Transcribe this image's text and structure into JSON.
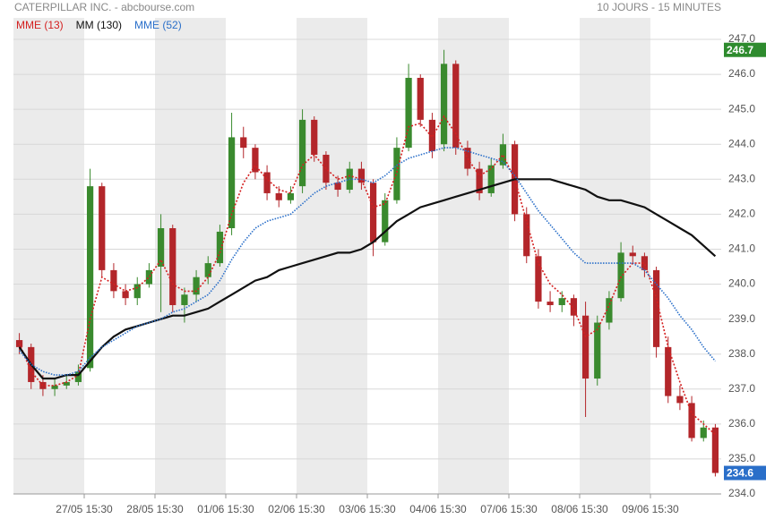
{
  "chart_data": {
    "type": "candlestick",
    "title": "CATERPILLAR INC. - abcbourse.com",
    "subtitle": "10 JOURS - 15 MINUTES",
    "up_color": "#3a8a2e",
    "down_color": "#b3262a",
    "candles": {
      "open": [
        238.4,
        238.2,
        237.2,
        237.0,
        237.1,
        237.2,
        237.6,
        242.8,
        240.4,
        239.8,
        239.6,
        240.0,
        240.5,
        241.6,
        239.4,
        239.7,
        240.2,
        240.6,
        241.6,
        244.2,
        243.9,
        243.2,
        242.6,
        242.4,
        242.8,
        244.7,
        243.7,
        242.9,
        242.7,
        243.3,
        242.9,
        241.2,
        242.4,
        243.9,
        245.9,
        244.7,
        244.0,
        246.3,
        243.9,
        243.3,
        242.6,
        243.4,
        244.0,
        242.0,
        240.8,
        239.5,
        239.4,
        239.6,
        239.1,
        237.3,
        238.9,
        239.6,
        240.9,
        240.8,
        240.4,
        238.2,
        236.8,
        236.6,
        235.6,
        235.9
      ],
      "high": [
        238.6,
        238.3,
        237.4,
        237.3,
        237.4,
        237.7,
        243.3,
        242.9,
        240.6,
        240.0,
        240.2,
        240.6,
        242.0,
        241.7,
        239.9,
        240.4,
        240.8,
        241.7,
        244.9,
        244.5,
        244.0,
        243.4,
        242.8,
        242.8,
        245.0,
        244.8,
        243.8,
        243.1,
        243.5,
        243.5,
        243.0,
        242.6,
        244.2,
        246.3,
        246.0,
        244.9,
        246.7,
        246.4,
        244.1,
        243.5,
        243.6,
        244.3,
        244.1,
        242.2,
        241.0,
        239.8,
        239.8,
        239.7,
        239.5,
        239.1,
        239.8,
        241.2,
        241.1,
        240.9,
        240.5,
        238.5,
        237.1,
        236.8,
        236.1,
        236.0
      ],
      "low": [
        238.0,
        237.0,
        236.8,
        236.8,
        237.0,
        237.1,
        237.5,
        240.2,
        239.6,
        239.4,
        239.4,
        239.9,
        239.2,
        239.2,
        238.9,
        239.5,
        240.0,
        240.5,
        241.4,
        243.6,
        243.0,
        242.4,
        242.2,
        242.3,
        242.6,
        243.5,
        242.7,
        242.5,
        242.6,
        242.7,
        240.8,
        241.1,
        242.3,
        243.8,
        244.5,
        243.6,
        243.8,
        243.7,
        243.1,
        242.4,
        242.5,
        243.3,
        241.8,
        240.6,
        239.3,
        239.2,
        239.2,
        238.8,
        236.2,
        237.1,
        238.7,
        239.5,
        240.6,
        240.2,
        237.9,
        236.6,
        236.4,
        235.5,
        235.5,
        234.5
      ],
      "close": [
        238.2,
        237.2,
        237.0,
        237.1,
        237.2,
        237.5,
        242.8,
        240.4,
        239.8,
        239.6,
        240.0,
        240.4,
        241.6,
        239.4,
        239.7,
        240.2,
        240.6,
        241.5,
        244.2,
        243.9,
        243.2,
        242.6,
        242.4,
        242.6,
        244.7,
        243.7,
        242.9,
        242.7,
        243.3,
        242.9,
        241.2,
        242.4,
        243.9,
        245.9,
        244.7,
        243.8,
        246.3,
        243.9,
        243.3,
        242.6,
        243.4,
        244.0,
        242.0,
        240.8,
        239.5,
        239.4,
        239.6,
        239.1,
        237.3,
        238.9,
        239.6,
        240.9,
        240.8,
        240.4,
        238.2,
        236.8,
        236.6,
        235.6,
        235.9,
        234.6
      ]
    },
    "series": [
      {
        "name": "MME (13)",
        "color": "#d42020",
        "dashed": true,
        "values": [
          238.3,
          237.5,
          237.1,
          237.1,
          237.2,
          237.4,
          239.0,
          240.2,
          240.0,
          239.8,
          239.9,
          240.2,
          240.7,
          240.0,
          239.8,
          239.8,
          240.2,
          240.9,
          242.0,
          242.9,
          243.4,
          243.0,
          242.7,
          242.6,
          243.4,
          243.7,
          243.3,
          243.0,
          243.1,
          243.0,
          242.2,
          242.3,
          243.2,
          244.5,
          244.6,
          244.2,
          244.8,
          244.3,
          243.6,
          243.1,
          243.3,
          243.7,
          243.0,
          241.8,
          240.6,
          240.0,
          239.7,
          239.3,
          238.5,
          238.7,
          239.4,
          240.2,
          240.6,
          240.6,
          239.6,
          238.2,
          237.2,
          236.3,
          236.0,
          235.7
        ]
      },
      {
        "name": "MM (130)",
        "color": "#111111",
        "dashed": false,
        "values": [
          238.2,
          237.7,
          237.3,
          237.3,
          237.4,
          237.4,
          237.8,
          238.2,
          238.5,
          238.7,
          238.8,
          238.9,
          239.0,
          239.1,
          239.1,
          239.2,
          239.3,
          239.5,
          239.7,
          239.9,
          240.1,
          240.2,
          240.4,
          240.5,
          240.6,
          240.7,
          240.8,
          240.9,
          240.9,
          241.0,
          241.2,
          241.5,
          241.8,
          242.0,
          242.2,
          242.3,
          242.4,
          242.5,
          242.6,
          242.7,
          242.8,
          242.9,
          243.0,
          243.0,
          243.0,
          243.0,
          242.9,
          242.8,
          242.7,
          242.5,
          242.4,
          242.4,
          242.3,
          242.2,
          242.0,
          241.8,
          241.6,
          241.4,
          241.1,
          240.8
        ]
      },
      {
        "name": "MME (52)",
        "color": "#2a6fc9",
        "dashed": true,
        "values": [
          238.1,
          237.7,
          237.5,
          237.4,
          237.4,
          237.5,
          237.9,
          238.2,
          238.4,
          238.6,
          238.8,
          238.9,
          239.0,
          239.2,
          239.3,
          239.5,
          239.7,
          240.1,
          240.7,
          241.2,
          241.6,
          241.8,
          241.9,
          242.0,
          242.3,
          242.6,
          242.8,
          242.9,
          243.0,
          243.0,
          242.9,
          243.1,
          243.4,
          243.6,
          243.7,
          243.8,
          243.9,
          243.9,
          243.8,
          243.7,
          243.6,
          243.5,
          243.1,
          242.6,
          242.1,
          241.7,
          241.3,
          240.9,
          240.6,
          240.6,
          240.6,
          240.6,
          240.6,
          240.4,
          240.0,
          239.6,
          239.1,
          238.7,
          238.2,
          237.8
        ]
      }
    ],
    "xlim": [
      0,
      60
    ],
    "xticks": [
      {
        "value": 6,
        "label": "27/05 15:30"
      },
      {
        "value": 12,
        "label": "28/05 15:30"
      },
      {
        "value": 18,
        "label": "01/06 15:30"
      },
      {
        "value": 24,
        "label": "02/06 15:30"
      },
      {
        "value": 30,
        "label": "03/06 15:30"
      },
      {
        "value": 36,
        "label": "04/06 15:30"
      },
      {
        "value": 42,
        "label": "07/06 15:30"
      },
      {
        "value": 48,
        "label": "08/06 15:30"
      },
      {
        "value": 54,
        "label": "09/06 15:30"
      }
    ],
    "ylim": [
      234,
      247
    ],
    "yticks": [
      {
        "value": 234,
        "label": "234.0"
      },
      {
        "value": 235,
        "label": "235.0"
      },
      {
        "value": 236,
        "label": "236.0"
      },
      {
        "value": 237,
        "label": "237.0"
      },
      {
        "value": 238,
        "label": "238.0"
      },
      {
        "value": 239,
        "label": "239.0"
      },
      {
        "value": 240,
        "label": "240.0"
      },
      {
        "value": 241,
        "label": "241.0"
      },
      {
        "value": 242,
        "label": "242.0"
      },
      {
        "value": 243,
        "label": "243.0"
      },
      {
        "value": 244,
        "label": "244.0"
      },
      {
        "value": 245,
        "label": "245.0"
      },
      {
        "value": 246,
        "label": "246.0"
      },
      {
        "value": 247,
        "label": "247.0"
      }
    ],
    "grid": true,
    "markers": [
      {
        "value": 246.7,
        "color": "#2e8b2e"
      },
      {
        "value": 234.6,
        "color": "#2a6fc9"
      }
    ]
  }
}
